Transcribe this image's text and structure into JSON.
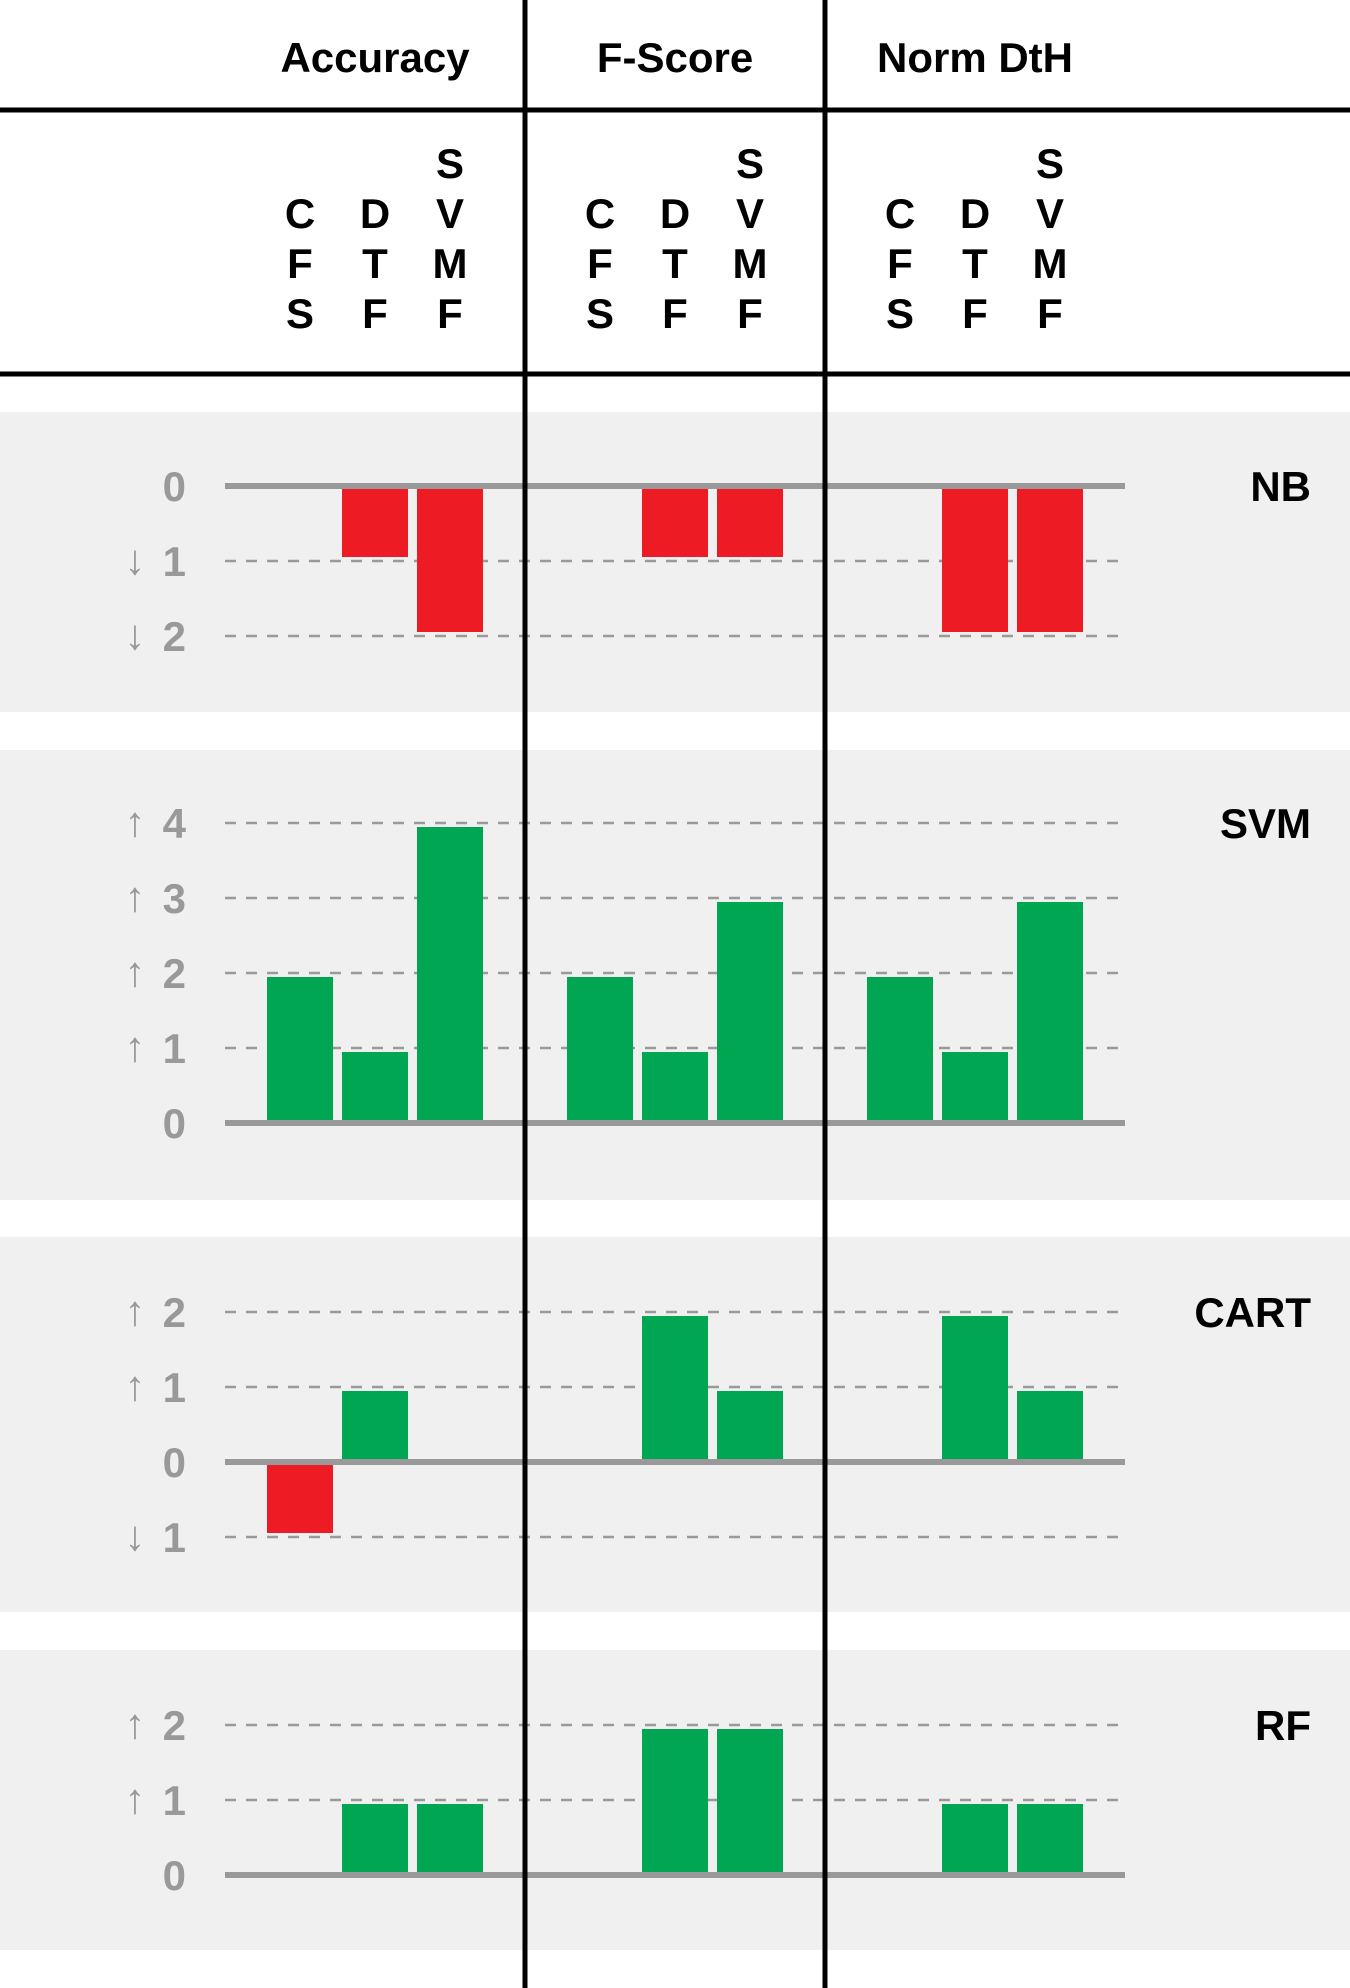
{
  "chart_data": {
    "type": "bar",
    "columns": [
      "Accuracy",
      "F-Score",
      "Norm DtH"
    ],
    "methods": [
      {
        "letters": [
          "C",
          "F",
          "S"
        ]
      },
      {
        "letters": [
          "D",
          "T",
          "F"
        ]
      },
      {
        "letters": [
          "S",
          "V",
          "M",
          "F"
        ]
      }
    ],
    "colors": {
      "positive": "#00a651",
      "negative": "#ed1c24",
      "panel": "#eff0ef",
      "axis": "#999999"
    },
    "rows": [
      {
        "label": "NB",
        "ylim": [
          -2,
          0
        ],
        "ticks": [
          {
            "value": 0,
            "text": "0",
            "arrow": ""
          },
          {
            "value": -1,
            "text": "1",
            "arrow": "↓"
          },
          {
            "value": -2,
            "text": "2",
            "arrow": "↓"
          }
        ],
        "values": [
          [
            0,
            -1,
            -2
          ],
          [
            0,
            -1,
            -1
          ],
          [
            0,
            -2,
            -2
          ]
        ]
      },
      {
        "label": "SVM",
        "ylim": [
          0,
          4
        ],
        "ticks": [
          {
            "value": 4,
            "text": "4",
            "arrow": "↑"
          },
          {
            "value": 3,
            "text": "3",
            "arrow": "↑"
          },
          {
            "value": 2,
            "text": "2",
            "arrow": "↑"
          },
          {
            "value": 1,
            "text": "1",
            "arrow": "↑"
          },
          {
            "value": 0,
            "text": "0",
            "arrow": ""
          }
        ],
        "values": [
          [
            2,
            1,
            4
          ],
          [
            2,
            1,
            3
          ],
          [
            2,
            1,
            3
          ]
        ]
      },
      {
        "label": "CART",
        "ylim": [
          -1,
          2
        ],
        "ticks": [
          {
            "value": 2,
            "text": "2",
            "arrow": "↑"
          },
          {
            "value": 1,
            "text": "1",
            "arrow": "↑"
          },
          {
            "value": 0,
            "text": "0",
            "arrow": ""
          },
          {
            "value": -1,
            "text": "1",
            "arrow": "↓"
          }
        ],
        "values": [
          [
            -1,
            1,
            0
          ],
          [
            0,
            2,
            1
          ],
          [
            0,
            2,
            1
          ]
        ]
      },
      {
        "label": "RF",
        "ylim": [
          0,
          2
        ],
        "ticks": [
          {
            "value": 2,
            "text": "2",
            "arrow": "↑"
          },
          {
            "value": 1,
            "text": "1",
            "arrow": "↑"
          },
          {
            "value": 0,
            "text": "0",
            "arrow": ""
          }
        ],
        "values": [
          [
            0,
            1,
            1
          ],
          [
            0,
            2,
            2
          ],
          [
            0,
            1,
            1
          ]
        ]
      }
    ]
  }
}
